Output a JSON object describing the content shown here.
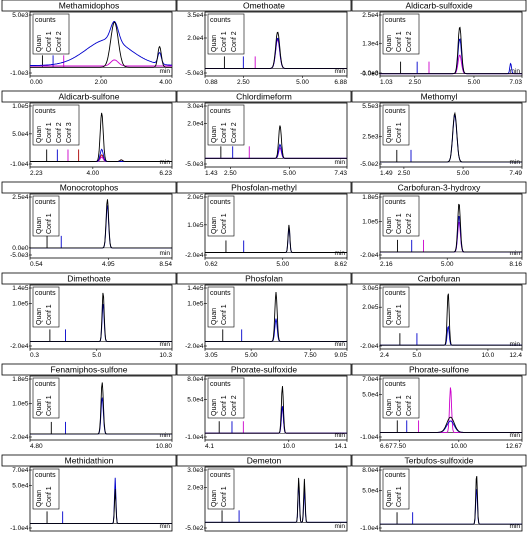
{
  "legend_counts": "counts",
  "x_unit": "min",
  "colors": {
    "quan": "#000000",
    "conf1": "#0000cc",
    "conf2": "#cc00cc",
    "conf3": "#aa0000"
  },
  "chart_data": [
    {
      "type": "line",
      "title": "Methamidophos",
      "xlim": [
        0.0,
        4.0
      ],
      "yticks": [
        "5.0e3",
        "-1.0e3"
      ],
      "ymax": 6000,
      "ymin": -1000,
      "xticks": [
        0.0,
        2.0,
        4.0
      ],
      "xtick_labels": [
        "0.00",
        "2.00",
        "4.00"
      ],
      "legend": [
        "Quan",
        "Conf 1",
        "Conf 2"
      ],
      "markers": [
        0.35,
        0.65,
        0.95
      ],
      "peaks": [
        {
          "rt": 2.38,
          "width": 0.15,
          "heights": [
            5200,
            2200,
            700
          ]
        },
        {
          "rt": 3.65,
          "width": 0.07,
          "heights": [
            2400,
            1300,
            0
          ]
        }
      ],
      "baseline": [
        0,
        200,
        150
      ],
      "hump": [
        0,
        3000,
        0
      ]
    },
    {
      "type": "line",
      "title": "Omethoate",
      "xlim": [
        0.88,
        6.88
      ],
      "yticks": [
        "3.5e4",
        "2.0e4",
        "-5.0e3"
      ],
      "ymax": 35000,
      "ymin": -5000,
      "xticks": [
        0.88,
        2.5,
        5.0,
        6.88
      ],
      "xtick_labels": [
        "0.88",
        "2.50",
        "5.00",
        "6.88"
      ],
      "legend": [
        "Quan",
        "Conf 1",
        "Conf 2"
      ],
      "markers": [
        1.7,
        2.5,
        3.0
      ],
      "peaks": [
        {
          "rt": 3.95,
          "width": 0.12,
          "heights": [
            24000,
            20000,
            19000
          ]
        }
      ]
    },
    {
      "type": "line",
      "title": "Aldicarb-sulfoxide",
      "xlim": [
        1.03,
        7.03
      ],
      "yticks": [
        "2.5e4",
        "1.3e4",
        "0.0e0",
        "-1.0e3"
      ],
      "ymax": 25000,
      "ymin": -1000,
      "xticks": [
        1.03,
        2.5,
        5.0,
        7.03
      ],
      "xtick_labels": [
        "1.03",
        "2.50",
        "5.00",
        "7.03"
      ],
      "legend": [
        "Quan",
        "Conf 1",
        "Conf 2"
      ],
      "markers": [
        1.9,
        2.6,
        3.1
      ],
      "peaks": [
        {
          "rt": 4.4,
          "width": 0.1,
          "heights": [
            20000,
            15000,
            8000
          ]
        },
        {
          "rt": 6.55,
          "width": 0.05,
          "heights": [
            0,
            4500,
            0
          ]
        }
      ]
    },
    {
      "type": "line",
      "title": "Aldicarb-sulfone",
      "xlim": [
        2.23,
        6.23
      ],
      "yticks": [
        "1.0e5",
        "5.0e4",
        "-1.0e4"
      ],
      "ymax": 100000,
      "ymin": -10000,
      "xticks": [
        2.23,
        4.0,
        6.23
      ],
      "xtick_labels": [
        "2.23",
        "4.00",
        "6.23"
      ],
      "legend": [
        "Quan",
        "Conf 1",
        "Conf 2",
        "Conf 3"
      ],
      "markers": [
        2.7,
        3.0,
        3.3,
        3.6
      ],
      "peaks": [
        {
          "rt": 4.25,
          "width": 0.06,
          "heights": [
            88000,
            22000,
            8000,
            12000
          ]
        },
        {
          "rt": 4.8,
          "width": 0.05,
          "heights": [
            3000,
            0,
            0,
            3000
          ]
        }
      ]
    },
    {
      "type": "line",
      "title": "Chlordimeform",
      "xlim": [
        1.43,
        7.43
      ],
      "yticks": [
        "3.0e4",
        "2.0e4",
        "-5.0e3"
      ],
      "ymax": 30000,
      "ymin": -5000,
      "xticks": [
        1.43,
        2.5,
        5.0,
        7.43
      ],
      "xtick_labels": [
        "1.43",
        "2.50",
        "5.00",
        "7.43"
      ],
      "legend": [
        "Quan",
        "Conf 1",
        "Conf 2"
      ],
      "markers": [
        2.1,
        2.6,
        3.3
      ],
      "peaks": [
        {
          "rt": 4.6,
          "width": 0.08,
          "heights": [
            19000,
            8000,
            6000
          ]
        }
      ],
      "pinkbase": true
    },
    {
      "type": "line",
      "title": "Methomyl",
      "xlim": [
        1.49,
        7.49
      ],
      "yticks": [
        "5.5e3",
        "2.5e3",
        "-5.0e2"
      ],
      "ymax": 5500,
      "ymin": -500,
      "xticks": [
        1.49,
        2.5,
        5.0,
        7.49
      ],
      "xtick_labels": [
        "1.49",
        "2.50",
        "5.00",
        "7.49"
      ],
      "legend": [
        "Quan",
        "Conf 1"
      ],
      "markers": [
        2.2,
        2.8
      ],
      "peaks": [
        {
          "rt": 4.65,
          "width": 0.12,
          "heights": [
            4800,
            4600
          ]
        }
      ]
    },
    {
      "type": "line",
      "title": "Monocrotophos",
      "xlim": [
        0.54,
        8.54
      ],
      "yticks": [
        "2.5e4",
        "0.0e0",
        "-5.0e3"
      ],
      "ymax": 25000,
      "ymin": -5000,
      "xticks": [
        0.54,
        4.95,
        8.54
      ],
      "xtick_labels": [
        "0.54",
        "4.95",
        "8.54"
      ],
      "legend": [
        "Quan",
        "Conf 1"
      ],
      "markers": [
        1.5,
        2.3
      ],
      "peaks": [
        {
          "rt": 4.9,
          "width": 0.1,
          "heights": [
            24000,
            21000
          ]
        }
      ]
    },
    {
      "type": "line",
      "title": "Phosfolan-methyl",
      "xlim": [
        0.62,
        8.62
      ],
      "yticks": [
        "2.0e5",
        "1.0e5",
        "-2.0e4"
      ],
      "ymax": 200000,
      "ymin": -20000,
      "xticks": [
        0.62,
        5.0,
        8.62
      ],
      "xtick_labels": [
        "0.62",
        "5.00",
        "8.62"
      ],
      "legend": [
        "Quan",
        "Conf 1"
      ],
      "markers": [
        1.8,
        2.8
      ],
      "peaks": [
        {
          "rt": 5.35,
          "width": 0.07,
          "heights": [
            100000,
            90000
          ]
        }
      ]
    },
    {
      "type": "line",
      "title": "Carbofuran-3-hydroxy",
      "xlim": [
        2.16,
        8.16
      ],
      "yticks": [
        "1.8e5",
        "1.0e5",
        "-2.0e4"
      ],
      "ymax": 180000,
      "ymin": -20000,
      "xticks": [
        2.16,
        5.0,
        8.16
      ],
      "xtick_labels": [
        "2.16",
        "5.00",
        "8.16"
      ],
      "legend": [
        "Quan",
        "Conf 1",
        "Conf 2"
      ],
      "markers": [
        2.9,
        3.5,
        4.0
      ],
      "peaks": [
        {
          "rt": 5.5,
          "width": 0.08,
          "heights": [
            160000,
            120000,
            100000
          ]
        }
      ]
    },
    {
      "type": "line",
      "title": "Dimethoate",
      "xlim": [
        0.3,
        10.3
      ],
      "yticks": [
        "1.4e5",
        "1.0e5",
        "-2.0e4"
      ],
      "ymax": 140000,
      "ymin": -20000,
      "xticks": [
        0.3,
        5.0,
        10.3
      ],
      "xtick_labels": [
        "0.3",
        "5.0",
        "10.3"
      ],
      "legend": [
        "Quan",
        "Conf 1"
      ],
      "markers": [
        1.7,
        2.8
      ],
      "peaks": [
        {
          "rt": 5.45,
          "width": 0.1,
          "heights": [
            130000,
            100000
          ]
        }
      ]
    },
    {
      "type": "line",
      "title": "Phosfolan",
      "xlim": [
        3.05,
        9.05
      ],
      "yticks": [
        "1.4e5",
        "1.0e5",
        "-2.0e4"
      ],
      "ymax": 140000,
      "ymin": -20000,
      "xticks": [
        3.05,
        5.0,
        7.5,
        9.05
      ],
      "xtick_labels": [
        "3.05",
        "5.00",
        "7.50",
        "9.05"
      ],
      "legend": [
        "Quan",
        "Conf 1"
      ],
      "markers": [
        3.8,
        4.6
      ],
      "peaks": [
        {
          "rt": 6.05,
          "width": 0.07,
          "heights": [
            130000,
            60000
          ]
        }
      ]
    },
    {
      "type": "line",
      "title": "Carbofuran",
      "xlim": [
        2.4,
        12.4
      ],
      "yticks": [
        "3.0e5",
        "2.0e5",
        "-2.0e4"
      ],
      "ymax": 300000,
      "ymin": -20000,
      "xticks": [
        2.4,
        5.0,
        10.0,
        12.4
      ],
      "xtick_labels": [
        "2.4",
        "5.0",
        "10.0",
        "12.4"
      ],
      "legend": [
        "Quan",
        "Conf 1"
      ],
      "markers": [
        3.8,
        5.0
      ],
      "peaks": [
        {
          "rt": 7.2,
          "width": 0.1,
          "heights": [
            280000,
            100000
          ]
        }
      ]
    },
    {
      "type": "line",
      "title": "Fenamiphos-sulfone",
      "xlim": [
        4.8,
        10.8
      ],
      "yticks": [
        "1.8e5",
        "1.0e5",
        "-2.0e4"
      ],
      "ymax": 180000,
      "ymin": -20000,
      "xticks": [
        4.8,
        10.8
      ],
      "xtick_labels": [
        "4.80",
        "10.80"
      ],
      "legend": [
        "Quan",
        "Conf 1"
      ],
      "markers": [
        5.7,
        6.3
      ],
      "peaks": [
        {
          "rt": 7.85,
          "width": 0.07,
          "heights": [
            170000,
            120000
          ]
        }
      ]
    },
    {
      "type": "line",
      "title": "Phorate-sulfoxide",
      "xlim": [
        4.1,
        14.1
      ],
      "yticks": [
        "8.0e4",
        "5.0e4",
        "-1.0e4"
      ],
      "ymax": 80000,
      "ymin": -10000,
      "xticks": [
        4.1,
        10.0,
        14.1
      ],
      "xtick_labels": [
        "4.1",
        "10.0",
        "14.1"
      ],
      "legend": [
        "Quan",
        "Conf 1",
        "Conf 2"
      ],
      "markers": [
        5.1,
        6.0,
        6.8
      ],
      "peaks": [
        {
          "rt": 9.55,
          "width": 0.1,
          "heights": [
            70000,
            40000,
            40000
          ]
        }
      ]
    },
    {
      "type": "line",
      "title": "Phorate-sulfone",
      "xlim": [
        6.67,
        12.67
      ],
      "yticks": [
        "7.0e4",
        "5.0e4",
        "-1.0e4"
      ],
      "ymax": 70000,
      "ymin": -10000,
      "xticks": [
        6.67,
        7.5,
        10.0,
        12.67
      ],
      "xtick_labels": [
        "6.67",
        "7.50",
        "10.00",
        "12.67"
      ],
      "legend": [
        "Quan",
        "Conf 1",
        "Conf 2"
      ],
      "markers": [
        7.4,
        7.8,
        8.3
      ],
      "peaks": [
        {
          "rt": 9.65,
          "width": 0.06,
          "heights": [
            0,
            0,
            60000
          ]
        },
        {
          "rt": 9.65,
          "width": 0.22,
          "heights": [
            20000,
            15000,
            0
          ]
        }
      ]
    },
    {
      "type": "line",
      "title": "Methidathion",
      "xlim": [
        0,
        10
      ],
      "yticks": [
        "7.0e4",
        "5.0e4",
        "-1.0e4"
      ],
      "ymax": 70000,
      "ymin": -10000,
      "xticks": [],
      "xtick_labels": [],
      "legend": [
        "Quan",
        "Conf 1"
      ],
      "markers": [
        1.2,
        2.3
      ],
      "peaks": [
        {
          "rt": 6.0,
          "width": 0.07,
          "heights": [
            45000,
            60000
          ]
        }
      ]
    },
    {
      "type": "line",
      "title": "Demeton",
      "xlim": [
        0,
        10
      ],
      "yticks": [
        "3.0e3",
        "2.0e3",
        "-5.0e2"
      ],
      "ymax": 3000,
      "ymin": -500,
      "xticks": [],
      "xtick_labels": [],
      "legend": [
        "Quan",
        "Conf 1"
      ],
      "markers": [
        1.2,
        2.4
      ],
      "peaks": [
        {
          "rt": 6.6,
          "width": 0.07,
          "heights": [
            2600,
            2300
          ]
        },
        {
          "rt": 7.0,
          "width": 0.07,
          "heights": [
            2500,
            1900
          ]
        }
      ]
    },
    {
      "type": "line",
      "title": "Terbufos-sulfoxide",
      "xlim": [
        0,
        10
      ],
      "yticks": [
        "8.0e4",
        "5.0e4",
        "-1.0e4"
      ],
      "ymax": 80000,
      "ymin": -10000,
      "xticks": [],
      "xtick_labels": [],
      "legend": [
        "Quan",
        "Conf 1"
      ],
      "markers": [
        1.2,
        2.3
      ],
      "peaks": [
        {
          "rt": 6.8,
          "width": 0.08,
          "heights": [
            75000,
            55000
          ]
        }
      ]
    }
  ]
}
